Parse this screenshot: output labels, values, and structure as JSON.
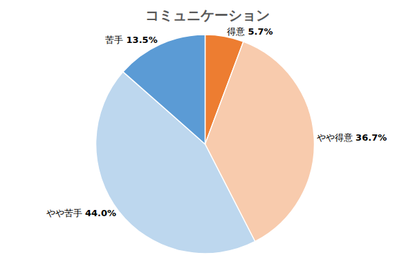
{
  "chart_data": {
    "type": "pie",
    "title": "コミュニケーション",
    "categories": [
      "得意",
      "やや得意",
      "やや苦手",
      "苦手"
    ],
    "values": [
      5.7,
      36.7,
      44.0,
      13.5
    ],
    "value_labels": [
      "5.7%",
      "36.7%",
      "44.0%",
      "13.5%"
    ],
    "colors": [
      "#ed7d31",
      "#f8cbad",
      "#bdd7ee",
      "#5b9bd5"
    ],
    "data_labels": true
  }
}
